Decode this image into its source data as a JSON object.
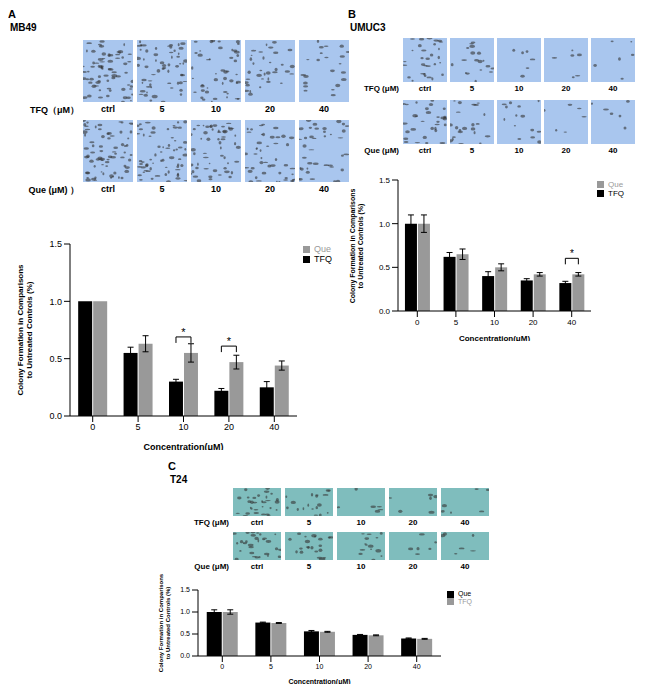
{
  "chart_data": [
    {
      "type": "bar",
      "categories": [
        "0",
        "5",
        "10",
        "20",
        "40"
      ],
      "series": [
        {
          "name": "TFQ",
          "color": "#000000",
          "values": [
            1.0,
            0.55,
            0.3,
            0.22,
            0.25
          ],
          "errors": [
            0,
            0.05,
            0.02,
            0.02,
            0.05
          ]
        },
        {
          "name": "Que",
          "color": "#999999",
          "values": [
            1.0,
            0.63,
            0.55,
            0.47,
            0.44
          ],
          "errors": [
            0,
            0.07,
            0.08,
            0.06,
            0.04
          ]
        }
      ],
      "ylim": [
        0,
        1.5
      ],
      "yticks": [
        {
          "value": 0,
          "label": "0.0"
        },
        {
          "value": 0.5,
          "label": "0.5"
        },
        {
          "value": 1,
          "label": "1.0"
        },
        {
          "value": 1.5,
          "label": "1.5"
        }
      ],
      "x_label": "Concentration(μM)",
      "y_label": [
        "Colony Formation in Comparisons",
        "to Untreated Controls (%)"
      ],
      "legend": "right",
      "annotations": [
        {
          "category": "10",
          "text": "*"
        },
        {
          "category": "20",
          "text": "*"
        }
      ]
    },
    {
      "type": "bar",
      "categories": [
        "0",
        "5",
        "10",
        "20",
        "40"
      ],
      "series": [
        {
          "name": "TFQ",
          "color": "#000000",
          "values": [
            1.0,
            0.62,
            0.4,
            0.35,
            0.32
          ],
          "errors": [
            0.1,
            0.05,
            0.05,
            0.02,
            0.02
          ]
        },
        {
          "name": "Que",
          "color": "#999999",
          "values": [
            1.0,
            0.65,
            0.5,
            0.42,
            0.42
          ],
          "errors": [
            0.1,
            0.06,
            0.04,
            0.02,
            0.02
          ]
        }
      ],
      "ylim": [
        0,
        1.5
      ],
      "yticks": [
        {
          "value": 0,
          "label": "0.0"
        },
        {
          "value": 0.5,
          "label": "0.5"
        },
        {
          "value": 1,
          "label": "1.0"
        },
        {
          "value": 1.5,
          "label": "1.5"
        }
      ],
      "x_label": "Concentration(μM)",
      "y_label": [
        "Colony Formation in Comparisons",
        "to Untreated Controls (%)"
      ],
      "legend": "right",
      "annotations": [
        {
          "category": "40",
          "text": "*"
        }
      ]
    },
    {
      "type": "bar",
      "categories": [
        "0",
        "5",
        "10",
        "20",
        "40"
      ],
      "series": [
        {
          "name": "Que",
          "color": "#000000",
          "values": [
            1.0,
            0.76,
            0.56,
            0.48,
            0.4
          ],
          "errors": [
            0.05,
            0.01,
            0.02,
            0.01,
            0.01
          ]
        },
        {
          "name": "TFQ",
          "color": "#999999",
          "values": [
            1.0,
            0.75,
            0.55,
            0.47,
            0.39
          ],
          "errors": [
            0.05,
            0.01,
            0.01,
            0.01,
            0.01
          ]
        }
      ],
      "ylim": [
        0,
        1.5
      ],
      "yticks": [
        {
          "value": 0,
          "label": "0.0"
        },
        {
          "value": 0.5,
          "label": "0.5"
        },
        {
          "value": 1,
          "label": "1.0"
        },
        {
          "value": 1.5,
          "label": "1.5"
        }
      ],
      "x_label": "Concentration(μM)",
      "y_label": [
        "Colony Formation in Comparisons",
        "to Untreated Controls (%)"
      ],
      "legend": "right"
    }
  ],
  "micrographs": [
    {
      "panel": "A",
      "cell_line": "MB49",
      "color": "#a9c6ee",
      "rows": [
        {
          "label": "TFQ（μM）",
          "columns": [
            "ctrl",
            "5",
            "10",
            "20",
            "40"
          ]
        },
        {
          "label": "Que (μM) ）",
          "columns": [
            "ctrl",
            "5",
            "10",
            "20",
            "40"
          ]
        }
      ]
    },
    {
      "panel": "B",
      "cell_line": "UMUC3",
      "color": "#a9c6ee",
      "rows": [
        {
          "label": "TFQ (μM)",
          "columns": [
            "ctrl",
            "5",
            "10",
            "20",
            "40"
          ]
        },
        {
          "label": "Que (μM)",
          "columns": [
            "ctrl",
            "5",
            "10",
            "20",
            "40"
          ]
        }
      ]
    },
    {
      "panel": "C",
      "cell_line": "T24",
      "color": "#7fbdbd",
      "rows": [
        {
          "label": "TFQ (μM)",
          "columns": [
            "ctrl",
            "5",
            "10",
            "20",
            "40"
          ]
        },
        {
          "label": "Que (μM)",
          "columns": [
            "ctrl",
            "5",
            "10",
            "20",
            "40"
          ]
        }
      ]
    }
  ]
}
